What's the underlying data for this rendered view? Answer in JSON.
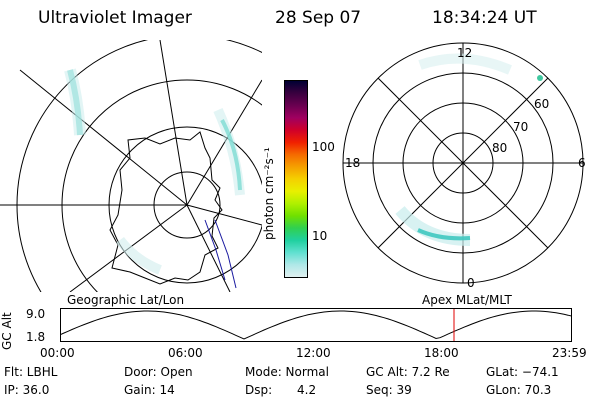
{
  "header": {
    "title": "Ultraviolet Imager",
    "date": "28 Sep 07",
    "time": "18:34:24 UT"
  },
  "colorbar": {
    "label": "photon cm⁻²s⁻¹",
    "ticks": [
      "100",
      "10"
    ],
    "colors": [
      "#000033",
      "#3a003f",
      "#6a0050",
      "#a00060",
      "#d0002a",
      "#f02000",
      "#f56a00",
      "#f5a000",
      "#f5d000",
      "#e8f000",
      "#b0f000",
      "#70e000",
      "#30d050",
      "#20d0a0",
      "#60e0d0",
      "#b0e8e8",
      "#e0f0f0"
    ]
  },
  "geographic_map": {
    "label": "Geographic Lat/Lon"
  },
  "apex_map": {
    "label": "Apex MLat/MLT",
    "mlt_labels": {
      "top": "12",
      "left": "18",
      "right": "6",
      "bottom": "0"
    },
    "mlat_labels": [
      "60",
      "70",
      "80"
    ]
  },
  "orbit_plot": {
    "ylabel": "GC Alt",
    "y_ticks": [
      "9.0",
      "1.8"
    ],
    "x_ticks": [
      "00:00",
      "06:00",
      "12:00",
      "18:00",
      "23:59"
    ]
  },
  "status": {
    "flt": "Flt: LBHL",
    "ip": "IP: 36.0",
    "door": "Door: Open",
    "gain": "Gain: 14",
    "mode": "Mode: Normal",
    "dsp_label": "Dsp:",
    "dsp_value": "4.2",
    "gc_alt": "GC Alt: 7.2 Re",
    "seq": "Seq: 39",
    "glat": "GLat: −74.1",
    "glon": "GLon: 70.3"
  },
  "accent": {
    "current_time_marker": "#e00000"
  }
}
